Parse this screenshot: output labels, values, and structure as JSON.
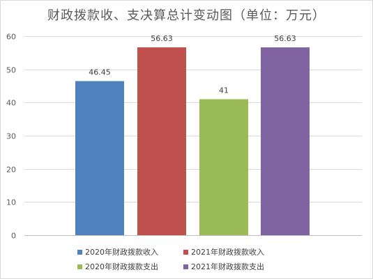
{
  "chart_data": {
    "type": "bar",
    "title": "财政拨款收、支决算总计变动图（单位：万元）",
    "xlabel": "",
    "ylabel": "",
    "ylim": [
      0,
      60
    ],
    "yticks": [
      0,
      10,
      20,
      30,
      40,
      50,
      60
    ],
    "grid": true,
    "legend_position": "bottom",
    "series": [
      {
        "name": "2020年财政拨款收入",
        "value": 46.45,
        "label": "46.45",
        "color": "#4f81bd"
      },
      {
        "name": "2021年财政拨款收入",
        "value": 56.63,
        "label": "56.63",
        "color": "#c0504d"
      },
      {
        "name": "2020年财政拨款支出",
        "value": 41,
        "label": "41",
        "color": "#9bbb59"
      },
      {
        "name": "2021年财政拨款支出",
        "value": 56.63,
        "label": "56.63",
        "color": "#8064a2"
      }
    ]
  }
}
